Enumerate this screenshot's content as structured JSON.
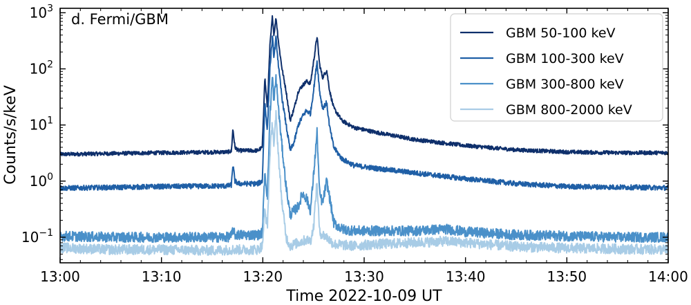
{
  "chart_data": {
    "type": "line",
    "panel_label": "d. Fermi/GBM",
    "xlabel": "Time 2022-10-09 UT",
    "ylabel": "Counts/s/keV",
    "x_unit": "minutes after 13:00 UT",
    "xlim": [
      0,
      60
    ],
    "ylim": [
      0.035,
      1200
    ],
    "y_scale": "log",
    "x_ticks": [
      {
        "value": 0,
        "label": "13:00"
      },
      {
        "value": 10,
        "label": "13:10"
      },
      {
        "value": 20,
        "label": "13:20"
      },
      {
        "value": 30,
        "label": "13:30"
      },
      {
        "value": 40,
        "label": "13:40"
      },
      {
        "value": 50,
        "label": "13:50"
      },
      {
        "value": 60,
        "label": "14:00"
      }
    ],
    "y_ticks": [
      {
        "value": 0.1,
        "base": "10",
        "exp": "−1"
      },
      {
        "value": 1,
        "base": "10",
        "exp": "0"
      },
      {
        "value": 10,
        "base": "10",
        "exp": "1"
      },
      {
        "value": 100,
        "base": "10",
        "exp": "2"
      },
      {
        "value": 1000,
        "base": "10",
        "exp": "3"
      }
    ],
    "legend_position": "top-right",
    "series": [
      {
        "name": "GBM 50-100 keV",
        "color": "#0e2f6b",
        "points": [
          [
            0,
            3.0
          ],
          [
            5,
            3.1
          ],
          [
            10,
            3.2
          ],
          [
            16.5,
            3.3
          ],
          [
            16.9,
            3.4
          ],
          [
            17.05,
            8.5
          ],
          [
            17.25,
            4.0
          ],
          [
            17.6,
            3.5
          ],
          [
            19.5,
            3.5
          ],
          [
            19.95,
            4.0
          ],
          [
            20.2,
            70
          ],
          [
            20.45,
            20
          ],
          [
            20.7,
            250
          ],
          [
            20.95,
            870
          ],
          [
            21.1,
            400
          ],
          [
            21.3,
            820
          ],
          [
            21.6,
            250
          ],
          [
            21.9,
            100
          ],
          [
            22.3,
            40
          ],
          [
            22.7,
            12
          ],
          [
            23.1,
            20
          ],
          [
            23.5,
            40
          ],
          [
            23.9,
            50
          ],
          [
            24.3,
            60
          ],
          [
            24.7,
            55
          ],
          [
            25.0,
            130
          ],
          [
            25.35,
            380
          ],
          [
            25.6,
            120
          ],
          [
            25.9,
            70
          ],
          [
            26.3,
            95
          ],
          [
            26.6,
            40
          ],
          [
            27.0,
            20
          ],
          [
            27.8,
            12
          ],
          [
            29,
            9
          ],
          [
            31,
            7.5
          ],
          [
            35,
            5.5
          ],
          [
            40,
            4.3
          ],
          [
            45,
            3.6
          ],
          [
            50,
            3.3
          ],
          [
            55,
            3.2
          ],
          [
            60,
            3.2
          ]
        ]
      },
      {
        "name": "GBM 100-300 keV",
        "color": "#1f5fa6",
        "points": [
          [
            0,
            0.75
          ],
          [
            5,
            0.77
          ],
          [
            10,
            0.8
          ],
          [
            16.5,
            0.82
          ],
          [
            16.9,
            0.85
          ],
          [
            17.05,
            2.0
          ],
          [
            17.25,
            1.0
          ],
          [
            17.6,
            0.9
          ],
          [
            19.5,
            0.9
          ],
          [
            19.95,
            1.0
          ],
          [
            20.2,
            25
          ],
          [
            20.45,
            8
          ],
          [
            20.7,
            100
          ],
          [
            20.95,
            370
          ],
          [
            21.1,
            160
          ],
          [
            21.3,
            360
          ],
          [
            21.6,
            90
          ],
          [
            21.9,
            30
          ],
          [
            22.3,
            10
          ],
          [
            22.7,
            3.5
          ],
          [
            23.1,
            5
          ],
          [
            23.5,
            10
          ],
          [
            23.9,
            14
          ],
          [
            24.3,
            18
          ],
          [
            24.7,
            16
          ],
          [
            25.0,
            40
          ],
          [
            25.35,
            140
          ],
          [
            25.6,
            40
          ],
          [
            25.9,
            20
          ],
          [
            26.3,
            25
          ],
          [
            26.6,
            9
          ],
          [
            27.0,
            4
          ],
          [
            27.8,
            2.5
          ],
          [
            29,
            1.9
          ],
          [
            31,
            1.7
          ],
          [
            35,
            1.4
          ],
          [
            40,
            1.1
          ],
          [
            45,
            0.9
          ],
          [
            50,
            0.8
          ],
          [
            55,
            0.78
          ],
          [
            60,
            0.76
          ]
        ]
      },
      {
        "name": "GBM 300-800 keV",
        "color": "#4a90c9",
        "points": [
          [
            0,
            0.105
          ],
          [
            5,
            0.1
          ],
          [
            10,
            0.1
          ],
          [
            16.5,
            0.1
          ],
          [
            16.9,
            0.105
          ],
          [
            17.05,
            0.14
          ],
          [
            17.25,
            0.11
          ],
          [
            19.5,
            0.11
          ],
          [
            19.95,
            0.12
          ],
          [
            20.2,
            1.5
          ],
          [
            20.45,
            0.5
          ],
          [
            20.7,
            15
          ],
          [
            20.95,
            75
          ],
          [
            21.1,
            25
          ],
          [
            21.3,
            70
          ],
          [
            21.6,
            15
          ],
          [
            21.9,
            4
          ],
          [
            22.3,
            0.8
          ],
          [
            22.7,
            0.25
          ],
          [
            23.1,
            0.3
          ],
          [
            23.5,
            0.35
          ],
          [
            23.9,
            0.6
          ],
          [
            24.3,
            0.5
          ],
          [
            24.7,
            0.3
          ],
          [
            25.0,
            1.2
          ],
          [
            25.35,
            7.5
          ],
          [
            25.6,
            0.6
          ],
          [
            25.9,
            0.4
          ],
          [
            26.3,
            1.0
          ],
          [
            26.6,
            0.5
          ],
          [
            27.0,
            0.18
          ],
          [
            27.8,
            0.14
          ],
          [
            29,
            0.13
          ],
          [
            31,
            0.13
          ],
          [
            35,
            0.13
          ],
          [
            38,
            0.14
          ],
          [
            40,
            0.125
          ],
          [
            45,
            0.11
          ],
          [
            50,
            0.105
          ],
          [
            55,
            0.1
          ],
          [
            60,
            0.1
          ]
        ]
      },
      {
        "name": "GBM 800-2000 keV",
        "color": "#a8cce6",
        "points": [
          [
            0,
            0.065
          ],
          [
            5,
            0.06
          ],
          [
            10,
            0.06
          ],
          [
            15,
            0.058
          ],
          [
            17,
            0.06
          ],
          [
            19.5,
            0.06
          ],
          [
            19.95,
            0.07
          ],
          [
            20.2,
            0.3
          ],
          [
            20.45,
            0.15
          ],
          [
            20.7,
            3
          ],
          [
            20.95,
            12
          ],
          [
            21.1,
            4
          ],
          [
            21.3,
            15
          ],
          [
            21.6,
            2
          ],
          [
            21.9,
            0.4
          ],
          [
            22.3,
            0.1
          ],
          [
            22.7,
            0.07
          ],
          [
            23.5,
            0.08
          ],
          [
            24.3,
            0.09
          ],
          [
            24.7,
            0.085
          ],
          [
            25.0,
            0.15
          ],
          [
            25.35,
            1.0
          ],
          [
            25.6,
            0.12
          ],
          [
            26.3,
            0.1
          ],
          [
            27.0,
            0.075
          ],
          [
            29,
            0.07
          ],
          [
            31,
            0.075
          ],
          [
            35,
            0.08
          ],
          [
            38,
            0.085
          ],
          [
            40,
            0.08
          ],
          [
            45,
            0.068
          ],
          [
            50,
            0.064
          ],
          [
            55,
            0.062
          ],
          [
            60,
            0.06
          ]
        ]
      }
    ]
  }
}
